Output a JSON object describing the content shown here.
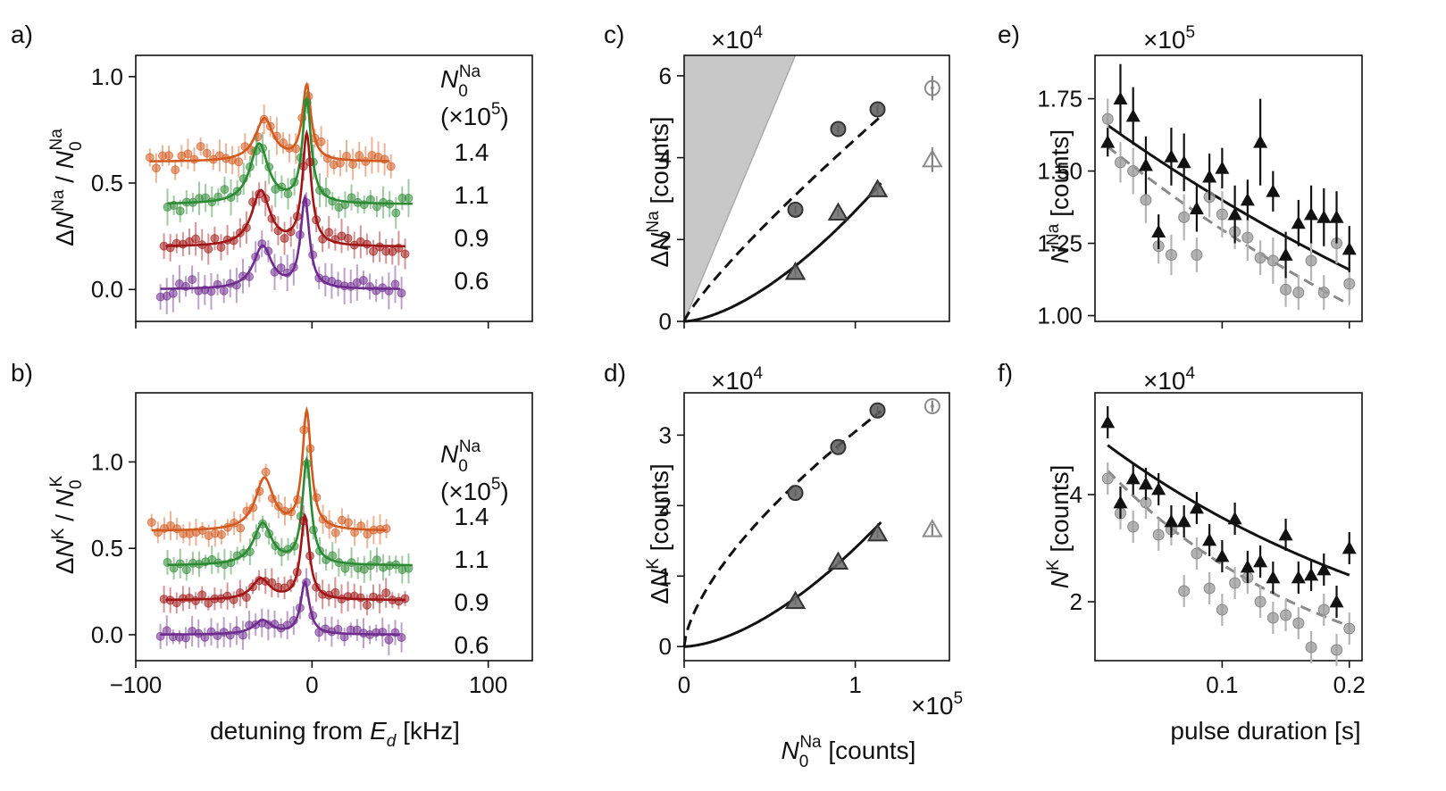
{
  "colors": {
    "orange": "#d35a1e",
    "green": "#2d8a34",
    "red": "#a01616",
    "purple": "#6f2c8f",
    "black": "#111111",
    "gray": "#8a8a8a",
    "shade": "#c8c8c8"
  },
  "shared": {
    "detuning_xlabel_prefix": "detuning from ",
    "detuning_xlabel_var": "E",
    "detuning_xlabel_sub": "d",
    "detuning_xlabel_suffix": " [kHz]",
    "n0_xlabel_var": "N",
    "n0_xlabel_sub": "0",
    "n0_xlabel_sup": "Na",
    "n0_xlabel_suffix": " [counts]",
    "pulse_xlabel": "pulse duration [s]"
  },
  "chart_data": [
    {
      "id": "a",
      "panel_label": "a)",
      "type": "scatter",
      "ylabel": "ΔN^Na / N_0^Na",
      "ylabel_parts": {
        "var": "N",
        "sup": "Na",
        "mid": " / ",
        "var2": "N",
        "sub2": "0",
        "sup2": "Na"
      },
      "xlim": [
        -100,
        125
      ],
      "ylim": [
        -0.15,
        1.1
      ],
      "xticks": [
        -100,
        0,
        100
      ],
      "xtick_labels": [
        "",
        "",
        ""
      ],
      "yticks": [
        0.0,
        0.5,
        1.0
      ],
      "ytick_labels": [
        "0.0",
        "0.5",
        "1.0"
      ],
      "legend_title_var": "N",
      "legend_title_sub": "0",
      "legend_title_sup": "Na",
      "legend_subtitle": "(×10",
      "legend_subtitle_exp": "5",
      "legend_subtitle_end": ")",
      "series": [
        {
          "name": "1.4",
          "color_key": "orange",
          "offset": 0.6,
          "a1": 0.35,
          "c1": -3,
          "w1": 6,
          "a2": 0.2,
          "c2": -27,
          "w2": 9,
          "x_start": -92,
          "x_end": 45,
          "fit_start": -92,
          "fit_end": 44,
          "noise": 0.06
        },
        {
          "name": "1.1",
          "color_key": "green",
          "offset": 0.4,
          "a1": 0.48,
          "c1": -3,
          "w1": 6,
          "a2": 0.28,
          "c2": -30,
          "w2": 9,
          "x_start": -82,
          "x_end": 57,
          "fit_start": -82,
          "fit_end": 57,
          "noise": 0.05
        },
        {
          "name": "0.9",
          "color_key": "red",
          "offset": 0.2,
          "a1": 0.52,
          "c1": -3,
          "w1": 6,
          "a2": 0.26,
          "c2": -29,
          "w2": 9,
          "x_start": -84,
          "x_end": 53,
          "fit_start": -83,
          "fit_end": 53,
          "noise": 0.045
        },
        {
          "name": "0.6",
          "color_key": "purple",
          "offset": 0.0,
          "a1": 0.42,
          "c1": -4,
          "w1": 6,
          "a2": 0.2,
          "c2": -28,
          "w2": 9,
          "x_start": -86,
          "x_end": 51,
          "fit_start": -86,
          "fit_end": 50,
          "noise": 0.045
        }
      ]
    },
    {
      "id": "b",
      "panel_label": "b)",
      "type": "scatter",
      "ylabel": "ΔN^K / N_0^K",
      "ylabel_parts": {
        "var": "N",
        "sup": "K",
        "mid": " / ",
        "var2": "N",
        "sub2": "0",
        "sup2": "K"
      },
      "xlim": [
        -100,
        125
      ],
      "ylim": [
        -0.15,
        1.4
      ],
      "xticks": [
        -100,
        0,
        100
      ],
      "xtick_labels": [
        "−100",
        "0",
        "100"
      ],
      "yticks": [
        0.0,
        0.5,
        1.0
      ],
      "ytick_labels": [
        "0.0",
        "0.5",
        "1.0"
      ],
      "legend_title_var": "N",
      "legend_title_sub": "0",
      "legend_title_sup": "Na",
      "legend_subtitle": "(×10",
      "legend_subtitle_exp": "5",
      "legend_subtitle_end": ")",
      "series": [
        {
          "name": "1.4",
          "color_key": "orange",
          "offset": 0.6,
          "a1": 0.68,
          "c1": -3,
          "w1": 6,
          "a2": 0.3,
          "c2": -27,
          "w2": 9,
          "x_start": -91,
          "x_end": 43,
          "fit_start": -91,
          "fit_end": 42,
          "noise": 0.06
        },
        {
          "name": "1.1",
          "color_key": "green",
          "offset": 0.4,
          "a1": 0.6,
          "c1": -3,
          "w1": 6,
          "a2": 0.24,
          "c2": -28,
          "w2": 9,
          "x_start": -82,
          "x_end": 57,
          "fit_start": -82,
          "fit_end": 57,
          "noise": 0.05
        },
        {
          "name": "0.9",
          "color_key": "red",
          "offset": 0.2,
          "a1": 0.48,
          "c1": -4,
          "w1": 6,
          "a2": 0.12,
          "c2": -29,
          "w2": 9,
          "x_start": -84,
          "x_end": 53,
          "fit_start": -83,
          "fit_end": 53,
          "noise": 0.04
        },
        {
          "name": "0.6",
          "color_key": "purple",
          "offset": 0.0,
          "a1": 0.3,
          "c1": -4,
          "w1": 6,
          "a2": 0.08,
          "c2": -28,
          "w2": 9,
          "x_start": -86,
          "x_end": 51,
          "fit_start": -86,
          "fit_end": 50,
          "noise": 0.04
        }
      ]
    },
    {
      "id": "c",
      "panel_label": "c)",
      "type": "scatter",
      "ylabel": "ΔN^Na [counts]",
      "ylabel_parts": {
        "var": "N",
        "sup": "Na",
        "suffix": " [counts]"
      },
      "multiplier_base": "×10",
      "multiplier_exp": "4",
      "xlim": [
        0,
        1.55
      ],
      "ylim": [
        0,
        6.5
      ],
      "xticks": [
        0,
        1
      ],
      "xtick_labels": [
        "",
        ""
      ],
      "yticks": [
        0,
        2,
        4,
        6
      ],
      "ytick_labels": [
        "0",
        "2",
        "4",
        "6"
      ],
      "shaded_region": {
        "x_at_top": 0.65,
        "y_top": 6.5
      },
      "fits": [
        {
          "style": "dashed",
          "color_key": "black",
          "model": "power",
          "a": 4.45,
          "p": 0.85,
          "x_max": 1.15
        },
        {
          "style": "solid",
          "color_key": "black",
          "model": "power",
          "a": 2.7,
          "p": 1.6,
          "x_max": 1.15
        }
      ],
      "points": [
        {
          "marker": "circle",
          "filled": true,
          "x": 0.65,
          "y": 2.73,
          "err": 0.1
        },
        {
          "marker": "circle",
          "filled": true,
          "x": 0.9,
          "y": 4.7,
          "err": 0.1
        },
        {
          "marker": "circle",
          "filled": true,
          "x": 1.13,
          "y": 5.18,
          "err": 0.12
        },
        {
          "marker": "circle",
          "filled": false,
          "x": 1.45,
          "y": 5.7,
          "err": 0.3
        },
        {
          "marker": "triangle",
          "filled": true,
          "x": 0.65,
          "y": 1.2,
          "err": 0.12
        },
        {
          "marker": "triangle",
          "filled": true,
          "x": 0.9,
          "y": 2.65,
          "err": 0.1
        },
        {
          "marker": "triangle",
          "filled": true,
          "x": 1.13,
          "y": 3.22,
          "err": 0.15
        },
        {
          "marker": "triangle",
          "filled": false,
          "x": 1.45,
          "y": 3.95,
          "err": 0.3
        }
      ]
    },
    {
      "id": "d",
      "panel_label": "d)",
      "type": "scatter",
      "ylabel": "ΔN^K [counts]",
      "ylabel_parts": {
        "var": "N",
        "sup": "K",
        "suffix": " [counts]"
      },
      "multiplier_base": "×10",
      "multiplier_exp": "4",
      "x_multiplier_base": "×10",
      "x_multiplier_exp": "5",
      "xlim": [
        0,
        1.55
      ],
      "ylim": [
        -0.2,
        3.6
      ],
      "xticks": [
        0,
        1
      ],
      "xtick_labels": [
        "0",
        "1"
      ],
      "yticks": [
        0,
        1,
        2,
        3
      ],
      "ytick_labels": [
        "0",
        "1",
        "2",
        "3"
      ],
      "fits": [
        {
          "style": "dashed",
          "color_key": "black",
          "model": "power",
          "a": 3.05,
          "p": 0.65,
          "x_max": 1.15
        },
        {
          "style": "solid",
          "color_key": "black",
          "model": "power",
          "a": 1.4,
          "p": 1.65,
          "x_max": 1.15
        }
      ],
      "points": [
        {
          "marker": "circle",
          "filled": true,
          "x": 0.65,
          "y": 2.18,
          "err": 0.05
        },
        {
          "marker": "circle",
          "filled": true,
          "x": 0.9,
          "y": 2.83,
          "err": 0.05
        },
        {
          "marker": "circle",
          "filled": true,
          "x": 1.13,
          "y": 3.35,
          "err": 0.06
        },
        {
          "marker": "circle",
          "filled": false,
          "x": 1.45,
          "y": 3.41,
          "err": 0.08
        },
        {
          "marker": "triangle",
          "filled": true,
          "x": 0.65,
          "y": 0.64,
          "err": 0.05
        },
        {
          "marker": "triangle",
          "filled": true,
          "x": 0.9,
          "y": 1.2,
          "err": 0.05
        },
        {
          "marker": "triangle",
          "filled": true,
          "x": 1.13,
          "y": 1.6,
          "err": 0.06
        },
        {
          "marker": "triangle",
          "filled": false,
          "x": 1.45,
          "y": 1.66,
          "err": 0.08
        }
      ]
    },
    {
      "id": "e",
      "panel_label": "e)",
      "type": "scatter",
      "ylabel": "N^Na [counts]",
      "ylabel_parts": {
        "var": "N",
        "sup": "Na",
        "suffix": " [counts]"
      },
      "multiplier_base": "×10",
      "multiplier_exp": "5",
      "xlim": [
        0,
        0.21
      ],
      "ylim": [
        0.98,
        1.9
      ],
      "xticks": [
        0.1,
        0.2
      ],
      "xtick_labels": [
        "",
        ""
      ],
      "yticks": [
        1.0,
        1.25,
        1.5,
        1.75
      ],
      "ytick_labels": [
        "1.00",
        "1.25",
        "1.50",
        "1.75"
      ],
      "fits": [
        {
          "style": "solid",
          "color_key": "black",
          "model": "exp",
          "A": 1.69,
          "tau": 0.53,
          "x_min": 0.01,
          "x_max": 0.2
        },
        {
          "style": "dashed",
          "color_key": "gray",
          "model": "exp",
          "A": 1.62,
          "tau": 0.45,
          "x_min": 0.01,
          "x_max": 0.2
        }
      ],
      "triangles": [
        {
          "x": 0.01,
          "y": 1.6,
          "err": 0.05
        },
        {
          "x": 0.02,
          "y": 1.75,
          "err": 0.12
        },
        {
          "x": 0.03,
          "y": 1.69,
          "err": 0.1
        },
        {
          "x": 0.04,
          "y": 1.52,
          "err": 0.1
        },
        {
          "x": 0.05,
          "y": 1.29,
          "err": 0.06
        },
        {
          "x": 0.06,
          "y": 1.55,
          "err": 0.1
        },
        {
          "x": 0.07,
          "y": 1.53,
          "err": 0.1
        },
        {
          "x": 0.08,
          "y": 1.37,
          "err": 0.08
        },
        {
          "x": 0.09,
          "y": 1.48,
          "err": 0.08
        },
        {
          "x": 0.1,
          "y": 1.51,
          "err": 0.07
        },
        {
          "x": 0.11,
          "y": 1.35,
          "err": 0.1
        },
        {
          "x": 0.12,
          "y": 1.4,
          "err": 0.07
        },
        {
          "x": 0.13,
          "y": 1.6,
          "err": 0.15
        },
        {
          "x": 0.14,
          "y": 1.43,
          "err": 0.07
        },
        {
          "x": 0.15,
          "y": 1.21,
          "err": 0.08
        },
        {
          "x": 0.16,
          "y": 1.32,
          "err": 0.08
        },
        {
          "x": 0.17,
          "y": 1.35,
          "err": 0.1
        },
        {
          "x": 0.18,
          "y": 1.34,
          "err": 0.1
        },
        {
          "x": 0.19,
          "y": 1.34,
          "err": 0.09
        },
        {
          "x": 0.2,
          "y": 1.23,
          "err": 0.08
        }
      ],
      "circles": [
        {
          "x": 0.01,
          "y": 1.68,
          "err": 0.07
        },
        {
          "x": 0.02,
          "y": 1.53,
          "err": 0.07
        },
        {
          "x": 0.03,
          "y": 1.5,
          "err": 0.08
        },
        {
          "x": 0.04,
          "y": 1.4,
          "err": 0.08
        },
        {
          "x": 0.05,
          "y": 1.24,
          "err": 0.06
        },
        {
          "x": 0.06,
          "y": 1.21,
          "err": 0.07
        },
        {
          "x": 0.07,
          "y": 1.34,
          "err": 0.08
        },
        {
          "x": 0.08,
          "y": 1.21,
          "err": 0.06
        },
        {
          "x": 0.09,
          "y": 1.41,
          "err": 0.07
        },
        {
          "x": 0.1,
          "y": 1.35,
          "err": 0.08
        },
        {
          "x": 0.11,
          "y": 1.29,
          "err": 0.06
        },
        {
          "x": 0.12,
          "y": 1.27,
          "err": 0.08
        },
        {
          "x": 0.13,
          "y": 1.2,
          "err": 0.06
        },
        {
          "x": 0.14,
          "y": 1.19,
          "err": 0.08
        },
        {
          "x": 0.15,
          "y": 1.09,
          "err": 0.06
        },
        {
          "x": 0.16,
          "y": 1.08,
          "err": 0.06
        },
        {
          "x": 0.17,
          "y": 1.19,
          "err": 0.07
        },
        {
          "x": 0.18,
          "y": 1.08,
          "err": 0.06
        },
        {
          "x": 0.19,
          "y": 1.25,
          "err": 0.07
        },
        {
          "x": 0.2,
          "y": 1.11,
          "err": 0.07
        }
      ]
    },
    {
      "id": "f",
      "panel_label": "f)",
      "type": "scatter",
      "ylabel": "N^K [counts]",
      "ylabel_parts": {
        "var": "N",
        "sup": "K",
        "suffix": " [counts]"
      },
      "multiplier_base": "×10",
      "multiplier_exp": "4",
      "xlim": [
        0,
        0.21
      ],
      "ylim": [
        0.9,
        5.9
      ],
      "xticks": [
        0.1,
        0.2
      ],
      "xtick_labels": [
        "0.1",
        "0.2"
      ],
      "yticks": [
        2,
        4
      ],
      "ytick_labels": [
        "2",
        "4"
      ],
      "fits": [
        {
          "style": "solid",
          "color_key": "black",
          "model": "exp",
          "A": 5.1,
          "tau": 0.28,
          "x_min": 0.01,
          "x_max": 0.2
        },
        {
          "style": "dashed",
          "color_key": "gray",
          "model": "exp",
          "A": 4.7,
          "tau": 0.18,
          "x_min": 0.01,
          "x_max": 0.2
        }
      ],
      "triangles": [
        {
          "x": 0.01,
          "y": 5.35,
          "err": 0.3
        },
        {
          "x": 0.02,
          "y": 3.85,
          "err": 0.3
        },
        {
          "x": 0.03,
          "y": 4.3,
          "err": 0.3
        },
        {
          "x": 0.04,
          "y": 4.2,
          "err": 0.3
        },
        {
          "x": 0.05,
          "y": 4.1,
          "err": 0.3
        },
        {
          "x": 0.06,
          "y": 3.5,
          "err": 0.3
        },
        {
          "x": 0.07,
          "y": 3.5,
          "err": 0.3
        },
        {
          "x": 0.08,
          "y": 3.75,
          "err": 0.3
        },
        {
          "x": 0.09,
          "y": 3.15,
          "err": 0.3
        },
        {
          "x": 0.1,
          "y": 2.85,
          "err": 0.3
        },
        {
          "x": 0.11,
          "y": 3.55,
          "err": 0.3
        },
        {
          "x": 0.12,
          "y": 2.65,
          "err": 0.3
        },
        {
          "x": 0.13,
          "y": 2.75,
          "err": 0.3
        },
        {
          "x": 0.14,
          "y": 2.45,
          "err": 0.3
        },
        {
          "x": 0.15,
          "y": 3.25,
          "err": 0.3
        },
        {
          "x": 0.16,
          "y": 2.45,
          "err": 0.3
        },
        {
          "x": 0.17,
          "y": 2.5,
          "err": 0.3
        },
        {
          "x": 0.18,
          "y": 2.6,
          "err": 0.3
        },
        {
          "x": 0.19,
          "y": 2.0,
          "err": 0.3
        },
        {
          "x": 0.2,
          "y": 3.0,
          "err": 0.3
        }
      ],
      "circles": [
        {
          "x": 0.01,
          "y": 4.3,
          "err": 0.3
        },
        {
          "x": 0.02,
          "y": 3.65,
          "err": 0.3
        },
        {
          "x": 0.03,
          "y": 3.4,
          "err": 0.3
        },
        {
          "x": 0.04,
          "y": 3.85,
          "err": 0.3
        },
        {
          "x": 0.05,
          "y": 3.25,
          "err": 0.3
        },
        {
          "x": 0.06,
          "y": 3.35,
          "err": 0.3
        },
        {
          "x": 0.07,
          "y": 2.2,
          "err": 0.3
        },
        {
          "x": 0.08,
          "y": 2.9,
          "err": 0.3
        },
        {
          "x": 0.09,
          "y": 2.25,
          "err": 0.3
        },
        {
          "x": 0.1,
          "y": 1.85,
          "err": 0.3
        },
        {
          "x": 0.11,
          "y": 2.35,
          "err": 0.3
        },
        {
          "x": 0.12,
          "y": 2.45,
          "err": 0.3
        },
        {
          "x": 0.13,
          "y": 2.0,
          "err": 0.3
        },
        {
          "x": 0.14,
          "y": 1.7,
          "err": 0.3
        },
        {
          "x": 0.15,
          "y": 1.75,
          "err": 0.3
        },
        {
          "x": 0.16,
          "y": 1.6,
          "err": 0.3
        },
        {
          "x": 0.17,
          "y": 1.15,
          "err": 0.3
        },
        {
          "x": 0.18,
          "y": 1.85,
          "err": 0.3
        },
        {
          "x": 0.19,
          "y": 1.1,
          "err": 0.3
        },
        {
          "x": 0.2,
          "y": 1.5,
          "err": 0.3
        }
      ]
    }
  ]
}
